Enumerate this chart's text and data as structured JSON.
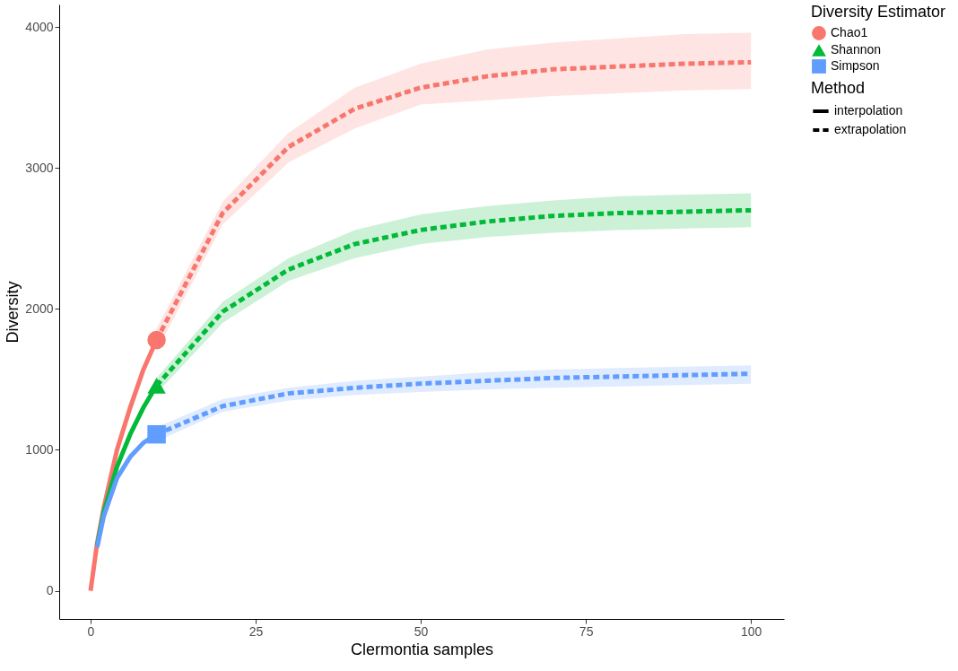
{
  "chart_data": {
    "type": "line",
    "xlabel": "Clermontia samples",
    "ylabel": "Diversity",
    "legend_title": [
      "Diversity Estimator",
      "Method"
    ],
    "legend": "right",
    "grid": false,
    "xlim": [
      -4.75,
      105
    ],
    "xticks": [
      0,
      25,
      50,
      75,
      100
    ],
    "ylim": [
      -200,
      4160
    ],
    "yticks": [
      0,
      1000,
      2000,
      3000,
      4000
    ],
    "series": [
      {
        "type": "line",
        "color": "#f8766d",
        "line_style": "solid",
        "x": [
          0,
          1,
          2,
          4,
          6,
          8,
          10
        ],
        "values": [
          0,
          340,
          590,
          1000,
          1300,
          1570,
          1780
        ]
      },
      {
        "type": "line",
        "color": "#f8766d",
        "line_style": "dashed",
        "x": [
          10,
          20,
          30,
          40,
          50,
          60,
          70,
          80,
          90,
          100
        ],
        "values": [
          1780,
          2680,
          3150,
          3420,
          3570,
          3650,
          3700,
          3720,
          3740,
          3750
        ],
        "lower": [
          1700,
          2600,
          3040,
          3280,
          3450,
          3480,
          3510,
          3530,
          3550,
          3560
        ],
        "upper": [
          1860,
          2760,
          3250,
          3570,
          3740,
          3840,
          3890,
          3920,
          3950,
          3960
        ]
      },
      {
        "type": "line",
        "color": "#00ba38",
        "line_style": "solid",
        "x": [
          1,
          2,
          4,
          6,
          8,
          10
        ],
        "values": [
          320,
          560,
          880,
          1110,
          1300,
          1456
        ]
      },
      {
        "type": "line",
        "color": "#00ba38",
        "line_style": "dashed",
        "x": [
          10,
          20,
          30,
          40,
          50,
          60,
          70,
          80,
          90,
          100
        ],
        "values": [
          1456,
          1980,
          2280,
          2460,
          2560,
          2620,
          2660,
          2680,
          2690,
          2700
        ],
        "lower": [
          1400,
          1900,
          2200,
          2360,
          2460,
          2510,
          2540,
          2560,
          2570,
          2580
        ],
        "upper": [
          1510,
          2050,
          2360,
          2560,
          2670,
          2730,
          2770,
          2800,
          2810,
          2820
        ]
      },
      {
        "type": "line",
        "color": "#619cff",
        "line_style": "solid",
        "x": [
          1,
          2,
          4,
          6,
          8,
          10
        ],
        "values": [
          310,
          530,
          800,
          950,
          1050,
          1110
        ]
      },
      {
        "type": "line",
        "color": "#619cff",
        "line_style": "dashed",
        "x": [
          10,
          20,
          30,
          40,
          50,
          60,
          70,
          80,
          90,
          100
        ],
        "values": [
          1110,
          1310,
          1400,
          1440,
          1470,
          1490,
          1510,
          1520,
          1530,
          1540
        ],
        "lower": [
          1060,
          1270,
          1350,
          1390,
          1410,
          1430,
          1440,
          1450,
          1460,
          1470
        ],
        "upper": [
          1160,
          1360,
          1440,
          1490,
          1520,
          1550,
          1570,
          1580,
          1590,
          1600
        ]
      },
      {
        "type": "scatter",
        "name": "Chao1",
        "color": "#f8766d",
        "marker": "circle",
        "x": [
          10
        ],
        "values": [
          1780
        ]
      },
      {
        "type": "scatter",
        "name": "Shannon",
        "color": "#00ba38",
        "marker": "triangle",
        "x": [
          10
        ],
        "values": [
          1456
        ]
      },
      {
        "type": "scatter",
        "name": "Simpson",
        "color": "#619cff",
        "marker": "square",
        "x": [
          10
        ],
        "values": [
          1110
        ]
      },
      {
        "name": "interpolation",
        "color": "#000000",
        "line_style": "solid"
      },
      {
        "name": "extrapolation",
        "color": "#000000",
        "line_style": "dashed"
      }
    ]
  }
}
